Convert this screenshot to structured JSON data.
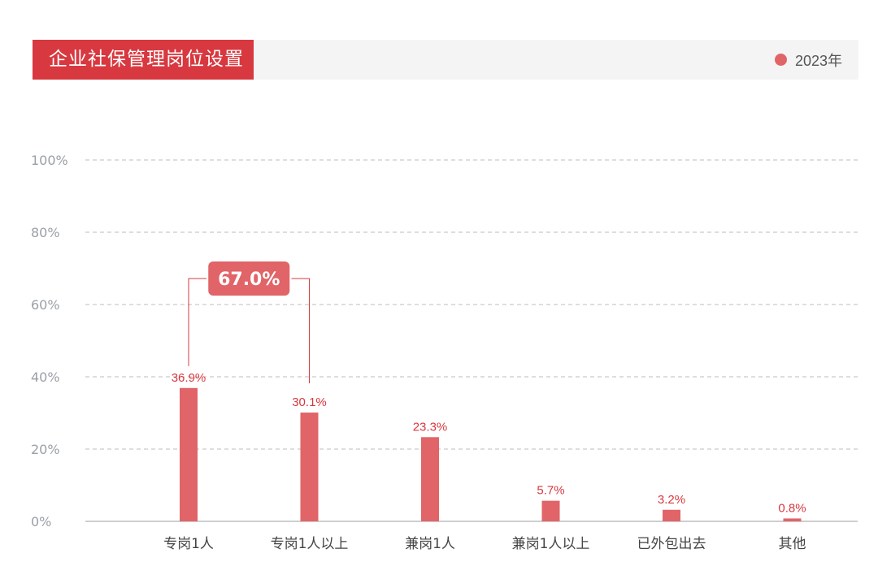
{
  "header": {
    "title": "企业社保管理岗位设置"
  },
  "legend": {
    "label": "2023年",
    "color": "#e06468"
  },
  "colors": {
    "bar": "#e06468",
    "accent": "#d8383f",
    "grid": "#bdbdbd"
  },
  "annotation": {
    "text": "67.0%",
    "spans_categories": [
      0,
      1
    ]
  },
  "chart_data": {
    "type": "bar",
    "title": "企业社保管理岗位设置",
    "categories": [
      "专岗1人",
      "专岗1人以上",
      "兼岗1人",
      "兼岗1人以上",
      "已外包出去",
      "其他"
    ],
    "series": [
      {
        "name": "2023年",
        "values": [
          36.9,
          30.1,
          23.3,
          5.7,
          3.2,
          0.8
        ],
        "value_labels": [
          "36.9%",
          "30.1%",
          "23.3%",
          "5.7%",
          "3.2%",
          "0.8%"
        ]
      }
    ],
    "yticks": [
      "0%",
      "20%",
      "40%",
      "60%",
      "80%",
      "100%"
    ],
    "ylim": [
      0,
      100
    ],
    "grid": true,
    "legend_position": "top-right"
  }
}
